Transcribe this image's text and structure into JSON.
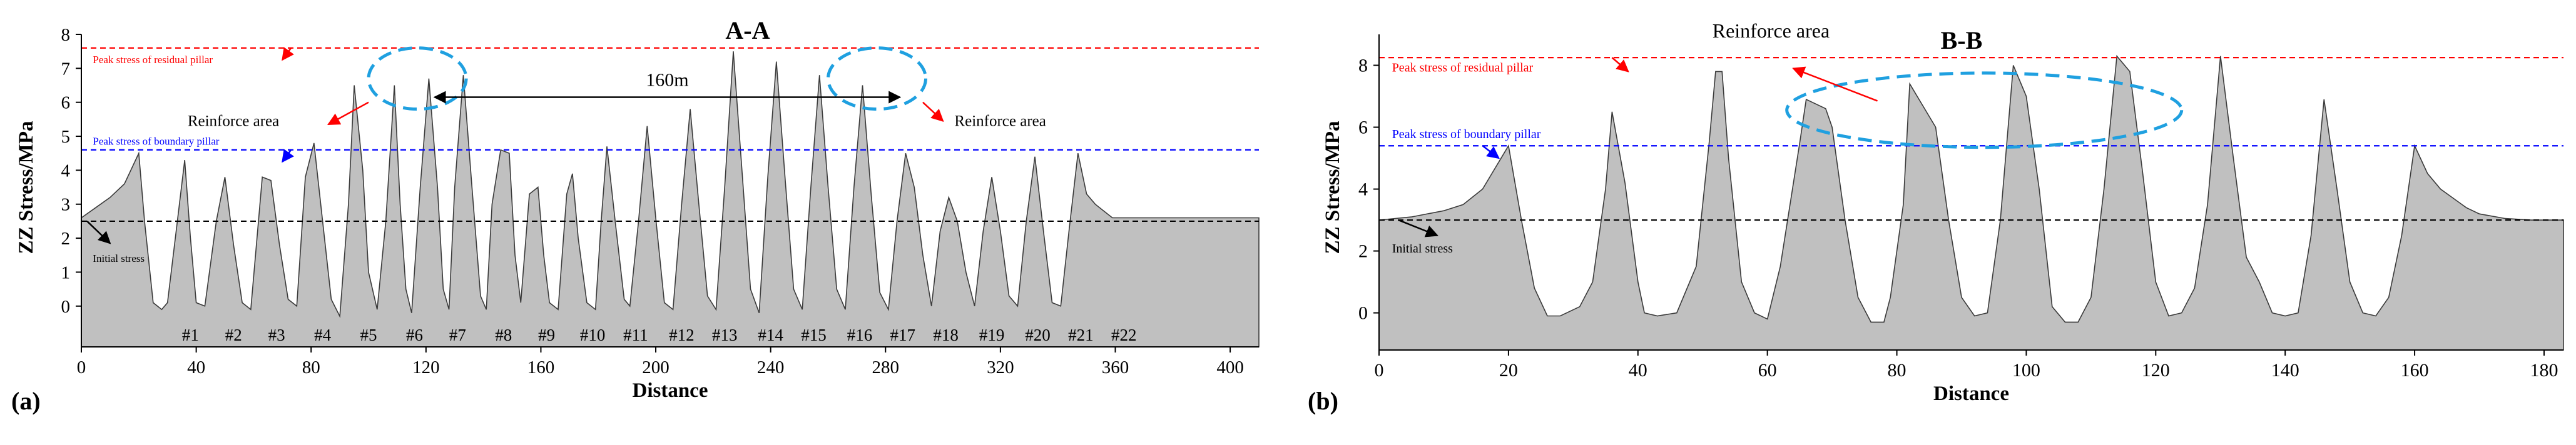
{
  "chart_data": [
    {
      "panel_label": "(a)",
      "type": "area",
      "title": "A-A",
      "xlabel": "Distance",
      "ylabel": "ZZ Stress/MPa",
      "xlim": [
        0,
        410
      ],
      "ylim": [
        -1.2,
        8
      ],
      "xticks": [
        0,
        40,
        80,
        120,
        160,
        200,
        240,
        280,
        320,
        360,
        400
      ],
      "yticks": [
        0,
        1,
        2,
        3,
        4,
        5,
        6,
        7,
        8
      ],
      "grid": false,
      "fill_color": "#c0c0c0",
      "stroke_color": "#3a3a3a",
      "x": [
        0,
        5,
        10,
        15,
        20,
        22,
        25,
        28,
        30,
        33,
        36,
        38,
        40,
        43,
        47,
        50,
        53,
        56,
        59,
        63,
        66,
        69,
        72,
        75,
        78,
        81,
        84,
        87,
        90,
        93,
        95,
        98,
        100,
        103,
        106,
        109,
        111,
        113,
        115,
        118,
        121,
        124,
        126,
        128,
        130,
        133,
        136,
        139,
        141,
        143,
        146,
        149,
        151,
        153,
        156,
        159,
        161,
        163,
        166,
        169,
        171,
        173,
        176,
        179,
        181,
        183,
        186,
        189,
        191,
        194,
        197,
        200,
        203,
        206,
        209,
        212,
        215,
        218,
        221,
        224,
        227,
        230,
        233,
        236,
        239,
        242,
        245,
        248,
        251,
        254,
        257,
        260,
        263,
        266,
        269,
        272,
        275,
        278,
        281,
        284,
        287,
        290,
        293,
        296,
        299,
        302,
        305,
        308,
        311,
        314,
        317,
        320,
        323,
        326,
        329,
        332,
        335,
        338,
        341,
        344,
        347,
        350,
        353,
        356,
        359,
        362,
        365,
        368,
        371,
        374,
        377,
        380,
        383,
        386,
        389,
        392,
        395,
        400,
        405,
        410
      ],
      "y": [
        2.6,
        2.9,
        3.2,
        3.6,
        4.5,
        2.5,
        0.1,
        -0.1,
        0.1,
        2.2,
        4.3,
        2.0,
        0.1,
        0.0,
        2.5,
        3.8,
        1.8,
        0.1,
        -0.1,
        3.8,
        3.7,
        1.8,
        0.2,
        0.0,
        3.8,
        4.8,
        2.5,
        0.2,
        -0.3,
        3.0,
        6.5,
        4.0,
        1.0,
        -0.1,
        2.5,
        6.5,
        3.0,
        0.5,
        -0.2,
        3.5,
        6.7,
        3.5,
        0.5,
        -0.1,
        3.5,
        6.8,
        3.5,
        0.3,
        -0.1,
        3.0,
        4.6,
        4.5,
        1.5,
        0.1,
        3.3,
        3.5,
        1.5,
        0.1,
        -0.1,
        3.3,
        3.9,
        2.0,
        0.1,
        -0.1,
        2.5,
        4.7,
        2.4,
        0.2,
        0.0,
        2.5,
        5.3,
        2.6,
        0.1,
        -0.1,
        3.0,
        5.8,
        3.0,
        0.3,
        -0.1,
        3.5,
        7.5,
        4.0,
        0.5,
        -0.2,
        3.8,
        7.2,
        3.8,
        0.5,
        -0.1,
        3.5,
        6.8,
        3.5,
        0.5,
        -0.1,
        3.5,
        6.5,
        3.3,
        0.4,
        -0.1,
        2.5,
        4.5,
        3.5,
        1.5,
        0.0,
        2.2,
        3.2,
        2.5,
        1.0,
        0.0,
        2.2,
        3.8,
        2.2,
        0.3,
        0.0,
        2.5,
        4.4,
        2.2,
        0.1,
        0.0,
        2.3,
        4.5,
        3.3,
        3.0,
        2.8,
        2.6,
        2.6,
        2.6,
        2.6,
        2.6,
        2.6,
        2.6,
        2.6,
        2.6,
        2.6,
        2.6,
        2.6,
        2.6,
        2.6,
        2.6,
        2.6
      ],
      "reference_lines": [
        {
          "name": "residual",
          "y": 7.6,
          "color": "#ff0000",
          "label": "Peak stress of residual pillar"
        },
        {
          "name": "boundary",
          "y": 4.6,
          "color": "#0000ff",
          "label": "Peak stress of boundary pillar"
        },
        {
          "name": "initial",
          "y": 2.5,
          "color": "#000000",
          "label": "Initial stress"
        }
      ],
      "pillar_labels": [
        {
          "text": "#1",
          "x": 38
        },
        {
          "text": "#2",
          "x": 53
        },
        {
          "text": "#3",
          "x": 68
        },
        {
          "text": "#4",
          "x": 84
        },
        {
          "text": "#5",
          "x": 100
        },
        {
          "text": "#6",
          "x": 116
        },
        {
          "text": "#7",
          "x": 131
        },
        {
          "text": "#8",
          "x": 147
        },
        {
          "text": "#9",
          "x": 162
        },
        {
          "text": "#10",
          "x": 178
        },
        {
          "text": "#11",
          "x": 193
        },
        {
          "text": "#12",
          "x": 209
        },
        {
          "text": "#13",
          "x": 224
        },
        {
          "text": "#14",
          "x": 240
        },
        {
          "text": "#15",
          "x": 255
        },
        {
          "text": "#16",
          "x": 271
        },
        {
          "text": "#17",
          "x": 286
        },
        {
          "text": "#18",
          "x": 301
        },
        {
          "text": "#19",
          "x": 317
        },
        {
          "text": "#20",
          "x": 333
        },
        {
          "text": "#21",
          "x": 348
        },
        {
          "text": "#22",
          "x": 363
        }
      ],
      "ellipses": [
        {
          "cx": 117,
          "cy": 6.7,
          "rx": 17,
          "ry": 0.9,
          "color": "#1fa0e0"
        },
        {
          "cx": 277,
          "cy": 6.7,
          "rx": 17,
          "ry": 0.9,
          "color": "#1fa0e0"
        }
      ],
      "span_arrow": {
        "x1": 123,
        "x2": 285,
        "y": 6.15,
        "label": "160m"
      },
      "annotations": [
        {
          "text": "Reinforce area",
          "x": 37,
          "y": 5.3,
          "anchor": "start",
          "size": 25
        },
        {
          "text": "Reinforce area",
          "x": 304,
          "y": 5.3,
          "anchor": "start",
          "size": 25
        }
      ],
      "arrows": [
        {
          "x1": 100,
          "y1": 6.0,
          "x2": 86,
          "y2": 5.35,
          "color": "#ff0000"
        },
        {
          "x1": 293,
          "y1": 6.0,
          "x2": 300,
          "y2": 5.45,
          "color": "#ff0000"
        },
        {
          "x1": 73,
          "y1": 7.6,
          "x2": 70,
          "y2": 7.25,
          "color": "#ff0000"
        },
        {
          "x1": 73,
          "y1": 4.6,
          "x2": 70,
          "y2": 4.25,
          "color": "#0000ff"
        },
        {
          "x1": 2,
          "y1": 2.5,
          "x2": 10,
          "y2": 1.85,
          "color": "#000000"
        }
      ],
      "line_labels": [
        {
          "text": "Peak stress of residual pillar",
          "x": 4,
          "y": 7.15,
          "color": "#ff0000",
          "size": 17
        },
        {
          "text": "Peak stress of boundary pillar",
          "x": 4,
          "y": 4.75,
          "color": "#0000ff",
          "size": 17
        },
        {
          "text": "Initial stress",
          "x": 4,
          "y": 1.3,
          "color": "#000000",
          "size": 17
        }
      ]
    },
    {
      "panel_label": "(b)",
      "type": "area",
      "title": "B-B",
      "xlabel": "Distance",
      "ylabel": "ZZ Stress/MPa",
      "xlim": [
        0,
        183
      ],
      "ylim": [
        -1.2,
        9
      ],
      "xticks": [
        0,
        20,
        40,
        60,
        80,
        100,
        120,
        140,
        160,
        180
      ],
      "yticks": [
        0,
        2,
        4,
        6,
        8
      ],
      "grid": false,
      "fill_color": "#c0c0c0",
      "stroke_color": "#3a3a3a",
      "x": [
        0,
        5,
        10,
        13,
        16,
        18,
        20,
        22,
        24,
        26,
        28,
        31,
        33,
        35,
        36,
        38,
        40,
        41,
        43,
        46,
        49,
        51,
        52,
        53,
        54,
        56,
        58,
        60,
        62,
        65,
        66,
        69,
        70,
        72,
        74,
        76,
        78,
        79,
        81,
        82,
        84,
        86,
        88,
        90,
        92,
        94,
        96,
        98,
        100,
        102,
        104,
        106,
        108,
        110,
        112,
        114,
        116,
        118,
        120,
        122,
        124,
        126,
        128,
        130,
        132,
        134,
        136,
        138,
        140,
        142,
        144,
        146,
        148,
        150,
        152,
        154,
        156,
        158,
        160,
        162,
        164,
        166,
        168,
        170,
        174,
        178,
        183
      ],
      "y": [
        3.0,
        3.1,
        3.3,
        3.5,
        4.0,
        4.7,
        5.4,
        3.0,
        0.8,
        -0.1,
        -0.1,
        0.2,
        1.0,
        4.0,
        6.5,
        4.2,
        1.0,
        0.0,
        -0.1,
        0.0,
        1.5,
        5.5,
        7.8,
        7.8,
        5.0,
        1.0,
        0.0,
        -0.2,
        1.5,
        5.5,
        6.9,
        6.6,
        6.0,
        3.0,
        0.5,
        -0.3,
        -0.3,
        0.5,
        3.5,
        7.4,
        6.7,
        6.0,
        3.0,
        0.5,
        -0.1,
        0.0,
        3.0,
        8.0,
        7.0,
        4.0,
        0.2,
        -0.3,
        -0.3,
        0.5,
        4.0,
        8.3,
        7.8,
        4.5,
        1.0,
        -0.1,
        0.0,
        0.8,
        3.5,
        8.3,
        5.0,
        1.8,
        1.0,
        0.0,
        -0.1,
        0.0,
        2.5,
        6.9,
        4.0,
        1.0,
        0.0,
        -0.1,
        0.5,
        2.5,
        5.4,
        4.5,
        4.0,
        3.7,
        3.4,
        3.2,
        3.05,
        3.0,
        3.0
      ],
      "reference_lines": [
        {
          "name": "residual",
          "y": 8.25,
          "color": "#ff0000",
          "label": "Peak stress of residual pillar"
        },
        {
          "name": "boundary",
          "y": 5.4,
          "color": "#0000ff",
          "label": "Peak stress of boundary pillar"
        },
        {
          "name": "initial",
          "y": 3.0,
          "color": "#000000",
          "label": "Initial stress"
        }
      ],
      "pillar_labels": [],
      "ellipses": [
        {
          "cx": 93.5,
          "cy": 6.55,
          "rx": 30.5,
          "ry": 1.2,
          "color": "#1fa0e0"
        }
      ],
      "span_arrow": null,
      "annotations": [
        {
          "text": "Reinforce area",
          "x": 51.5,
          "y": 8.9,
          "anchor": "start",
          "size": 32
        }
      ],
      "arrows": [
        {
          "x1": 77,
          "y1": 6.85,
          "x2": 64,
          "y2": 7.9,
          "color": "#ff0000"
        },
        {
          "x1": 36,
          "y1": 8.25,
          "x2": 38.5,
          "y2": 7.8,
          "color": "#ff0000"
        },
        {
          "x1": 16,
          "y1": 5.4,
          "x2": 18.5,
          "y2": 5.0,
          "color": "#0000ff"
        },
        {
          "x1": 3,
          "y1": 3.0,
          "x2": 9,
          "y2": 2.5,
          "color": "#000000"
        }
      ],
      "line_labels": [
        {
          "text": "Peak stress of residual pillar",
          "x": 2,
          "y": 7.8,
          "color": "#ff0000",
          "size": 20
        },
        {
          "text": "Peak stress of boundary pillar",
          "x": 2,
          "y": 5.65,
          "color": "#0000ff",
          "size": 20
        },
        {
          "text": "Initial stress",
          "x": 2,
          "y": 1.95,
          "color": "#000000",
          "size": 20
        }
      ]
    }
  ]
}
